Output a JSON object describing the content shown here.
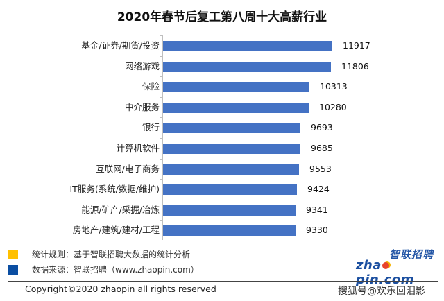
{
  "title": "2020年春节后复工第八周十大高薪行业",
  "chart_data": {
    "type": "bar",
    "orientation": "horizontal",
    "title": "2020年春节后复工第八周十大高薪行业",
    "categories": [
      "基金/证券/期货/投资",
      "网络游戏",
      "保险",
      "中介服务",
      "银行",
      "计算机软件",
      "互联网/电子商务",
      "IT服务(系统/数据/维护)",
      "能源/矿产/采掘/冶炼",
      "房地产/建筑/建材/工程"
    ],
    "values": [
      11917,
      11806,
      10313,
      10280,
      9693,
      9685,
      9553,
      9424,
      9341,
      9330
    ],
    "value_labels": [
      "11917",
      "11806",
      "10313",
      "10280",
      "9693",
      "9685",
      "9553",
      "9424",
      "9341",
      "9330"
    ],
    "xlabel": "",
    "ylabel": "",
    "xlim": [
      0,
      12000
    ],
    "grid": false,
    "bar_color": "#4472c4",
    "data_labels": true
  },
  "legend": [
    {
      "label": "统计规则：基于智联招聘大数据的统计分析",
      "color": "#ffc000"
    },
    {
      "label": "数据来源：智联招聘（www.zhaopin.com）",
      "color": "#0b4ea2"
    }
  ],
  "footer": {
    "copyright": "Copyright©2020 zhaopin all rights reserved",
    "watermark": "搜狐号@欢乐回泪影"
  },
  "logo": {
    "cn": "智联招聘",
    "en_left": "zha",
    "en_right": "pin.com"
  }
}
